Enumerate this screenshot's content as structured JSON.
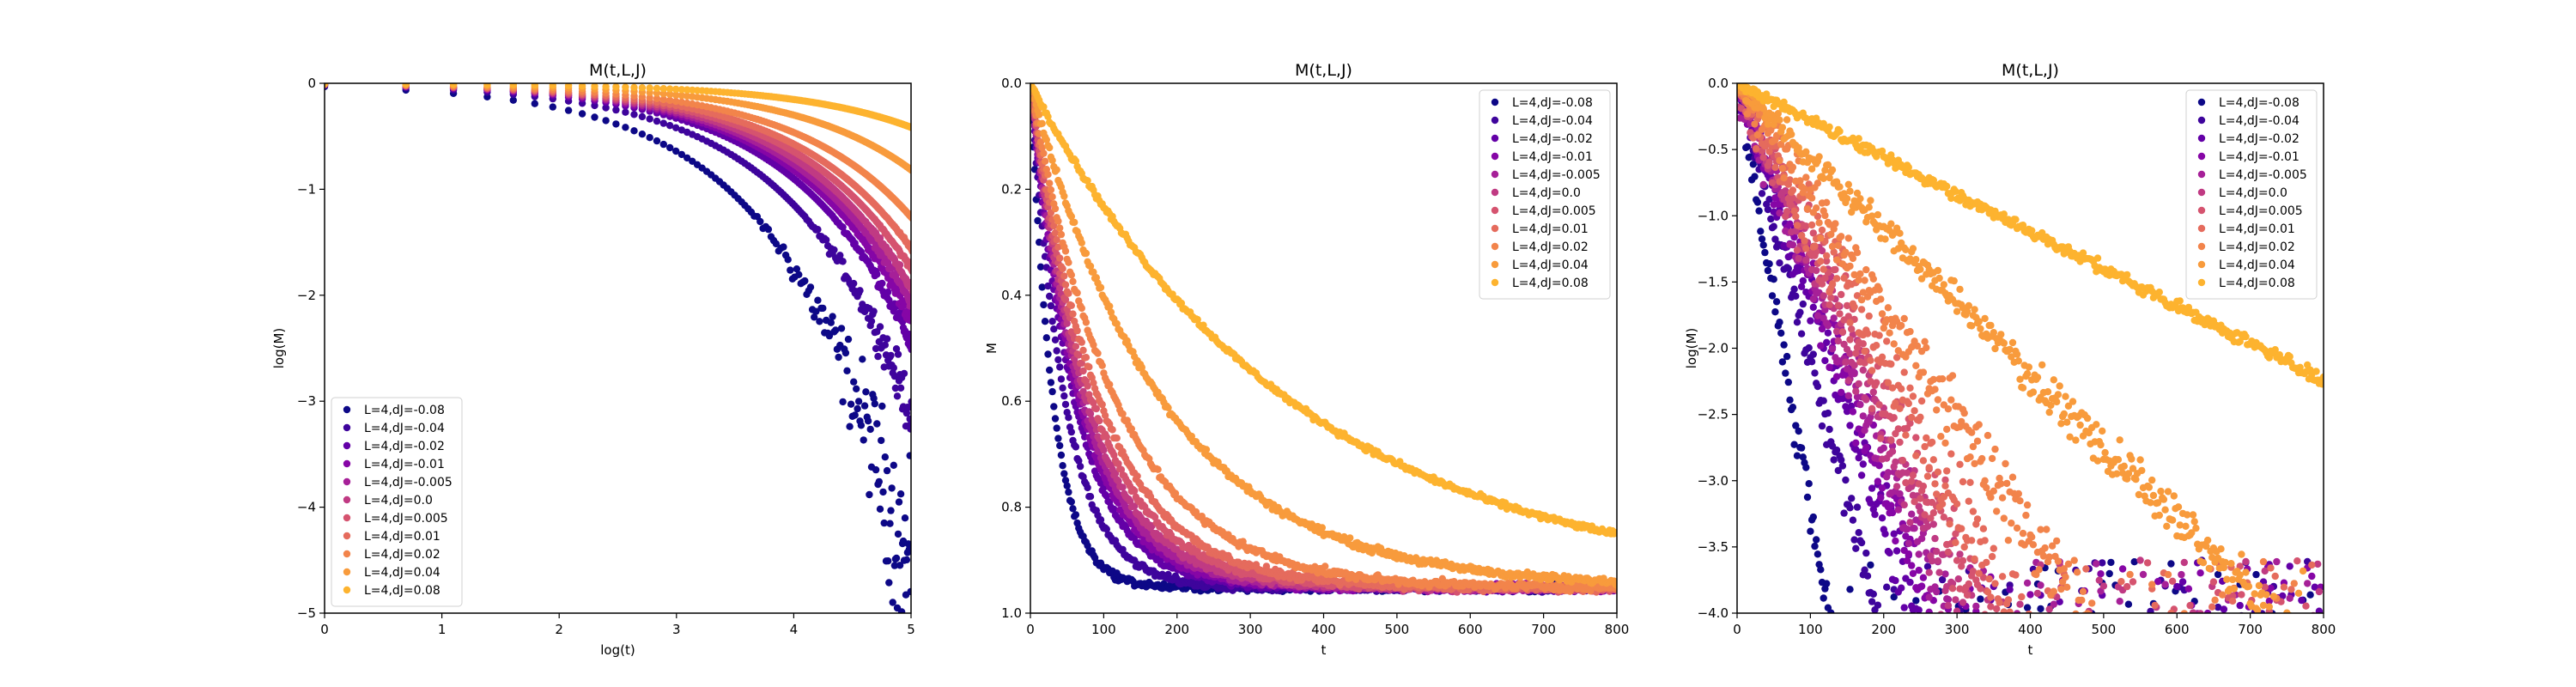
{
  "chart_data": [
    {
      "type": "scatter",
      "title": "M(t,L,J)",
      "xlabel": "log(t)",
      "ylabel": "log(M)",
      "xlim": [
        0,
        5
      ],
      "ylim": [
        -5,
        0
      ],
      "xticks": [
        "0",
        "1",
        "2",
        "3",
        "4",
        "5"
      ],
      "yticks": [
        "0",
        "−1",
        "−2",
        "−3",
        "−4",
        "−5"
      ],
      "legend_position": "lower-left",
      "grid": false,
      "series": [
        {
          "name": "L=4,dJ=-0.08",
          "color": "#0d0887",
          "curve": "loglog",
          "rate": 0.032,
          "noise": 0.22
        },
        {
          "name": "L=4,dJ=-0.04",
          "color": "#3e049c",
          "curve": "loglog",
          "rate": 0.021,
          "noise": 0.12
        },
        {
          "name": "L=4,dJ=-0.02",
          "color": "#6300a7",
          "curve": "loglog",
          "rate": 0.0165,
          "noise": 0.08
        },
        {
          "name": "L=4,dJ=-0.01",
          "color": "#8606a6",
          "curve": "loglog",
          "rate": 0.015,
          "noise": 0.07
        },
        {
          "name": "L=4,dJ=-0.005",
          "color": "#a62098",
          "curve": "loglog",
          "rate": 0.014,
          "noise": 0.06
        },
        {
          "name": "L=4,dJ=0.0",
          "color": "#c03a83",
          "curve": "loglog",
          "rate": 0.013,
          "noise": 0.06
        },
        {
          "name": "L=4,dJ=0.005",
          "color": "#d5536f",
          "curve": "loglog",
          "rate": 0.0118,
          "noise": 0.05
        },
        {
          "name": "L=4,dJ=0.01",
          "color": "#e56b5d",
          "curve": "loglog",
          "rate": 0.0105,
          "noise": 0.05
        },
        {
          "name": "L=4,dJ=0.02",
          "color": "#f2844b",
          "curve": "loglog",
          "rate": 0.0085,
          "noise": 0.04
        },
        {
          "name": "L=4,dJ=0.04",
          "color": "#f89b3c",
          "curve": "loglog",
          "rate": 0.0055,
          "noise": 0.03
        },
        {
          "name": "L=4,dJ=0.08",
          "color": "#fdb32f",
          "curve": "loglog",
          "rate": 0.0028,
          "noise": 0.02
        }
      ]
    },
    {
      "type": "scatter",
      "title": "M(t,L,J)",
      "xlabel": "t",
      "ylabel": "M",
      "xlim": [
        0,
        800
      ],
      "ylim": [
        -0.05,
        1.0
      ],
      "xticks": [
        "0",
        "100",
        "200",
        "300",
        "400",
        "500",
        "600",
        "700",
        "800"
      ],
      "yticks": [
        "0.0",
        "0.2",
        "0.4",
        "0.6",
        "0.8",
        "1.0"
      ],
      "legend_position": "upper-right",
      "grid": false,
      "series": [
        {
          "name": "L=4,dJ=-0.08",
          "color": "#0d0887",
          "curve": "linear",
          "rate": 0.032,
          "noise": 0.01
        },
        {
          "name": "L=4,dJ=-0.04",
          "color": "#3e049c",
          "curve": "linear",
          "rate": 0.021,
          "noise": 0.01
        },
        {
          "name": "L=4,dJ=-0.02",
          "color": "#6300a7",
          "curve": "linear",
          "rate": 0.0165,
          "noise": 0.01
        },
        {
          "name": "L=4,dJ=-0.01",
          "color": "#8606a6",
          "curve": "linear",
          "rate": 0.015,
          "noise": 0.01
        },
        {
          "name": "L=4,dJ=-0.005",
          "color": "#a62098",
          "curve": "linear",
          "rate": 0.014,
          "noise": 0.01
        },
        {
          "name": "L=4,dJ=0.0",
          "color": "#c03a83",
          "curve": "linear",
          "rate": 0.013,
          "noise": 0.01
        },
        {
          "name": "L=4,dJ=0.005",
          "color": "#d5536f",
          "curve": "linear",
          "rate": 0.0118,
          "noise": 0.01
        },
        {
          "name": "L=4,dJ=0.01",
          "color": "#e56b5d",
          "curve": "linear",
          "rate": 0.0105,
          "noise": 0.01
        },
        {
          "name": "L=4,dJ=0.02",
          "color": "#f2844b",
          "curve": "linear",
          "rate": 0.0085,
          "noise": 0.01
        },
        {
          "name": "L=4,dJ=0.04",
          "color": "#f89b3c",
          "curve": "linear",
          "rate": 0.0055,
          "noise": 0.01
        },
        {
          "name": "L=4,dJ=0.08",
          "color": "#fdb32f",
          "curve": "linear",
          "rate": 0.0028,
          "noise": 0.008
        }
      ]
    },
    {
      "type": "scatter",
      "title": "M(t,L,J)",
      "xlabel": "t",
      "ylabel": "log(M)",
      "xlim": [
        0,
        800
      ],
      "ylim": [
        -4.0,
        0.0
      ],
      "xticks": [
        "0",
        "100",
        "200",
        "300",
        "400",
        "500",
        "600",
        "700",
        "800"
      ],
      "yticks": [
        "0.0",
        "−0.5",
        "−1.0",
        "−1.5",
        "−2.0",
        "−2.5",
        "−3.0",
        "−3.5",
        "−4.0"
      ],
      "legend_position": "upper-right",
      "grid": false,
      "series": [
        {
          "name": "L=4,dJ=-0.08",
          "color": "#0d0887",
          "curve": "semilog",
          "rate": 0.032,
          "noise": 0.1
        },
        {
          "name": "L=4,dJ=-0.04",
          "color": "#3e049c",
          "curve": "semilog",
          "rate": 0.021,
          "noise": 0.1
        },
        {
          "name": "L=4,dJ=-0.02",
          "color": "#6300a7",
          "curve": "semilog",
          "rate": 0.0165,
          "noise": 0.12
        },
        {
          "name": "L=4,dJ=-0.01",
          "color": "#8606a6",
          "curve": "semilog",
          "rate": 0.015,
          "noise": 0.14
        },
        {
          "name": "L=4,dJ=-0.005",
          "color": "#a62098",
          "curve": "semilog",
          "rate": 0.014,
          "noise": 0.15
        },
        {
          "name": "L=4,dJ=0.0",
          "color": "#c03a83",
          "curve": "semilog",
          "rate": 0.013,
          "noise": 0.15
        },
        {
          "name": "L=4,dJ=0.005",
          "color": "#d5536f",
          "curve": "semilog",
          "rate": 0.0118,
          "noise": 0.16
        },
        {
          "name": "L=4,dJ=0.01",
          "color": "#e56b5d",
          "curve": "semilog",
          "rate": 0.0105,
          "noise": 0.16
        },
        {
          "name": "L=4,dJ=0.02",
          "color": "#f2844b",
          "curve": "semilog",
          "rate": 0.0085,
          "noise": 0.14
        },
        {
          "name": "L=4,dJ=0.04",
          "color": "#f89b3c",
          "curve": "semilog",
          "rate": 0.0055,
          "noise": 0.08
        },
        {
          "name": "L=4,dJ=0.08",
          "color": "#fdb32f",
          "curve": "semilog",
          "rate": 0.0028,
          "noise": 0.03
        }
      ]
    }
  ]
}
